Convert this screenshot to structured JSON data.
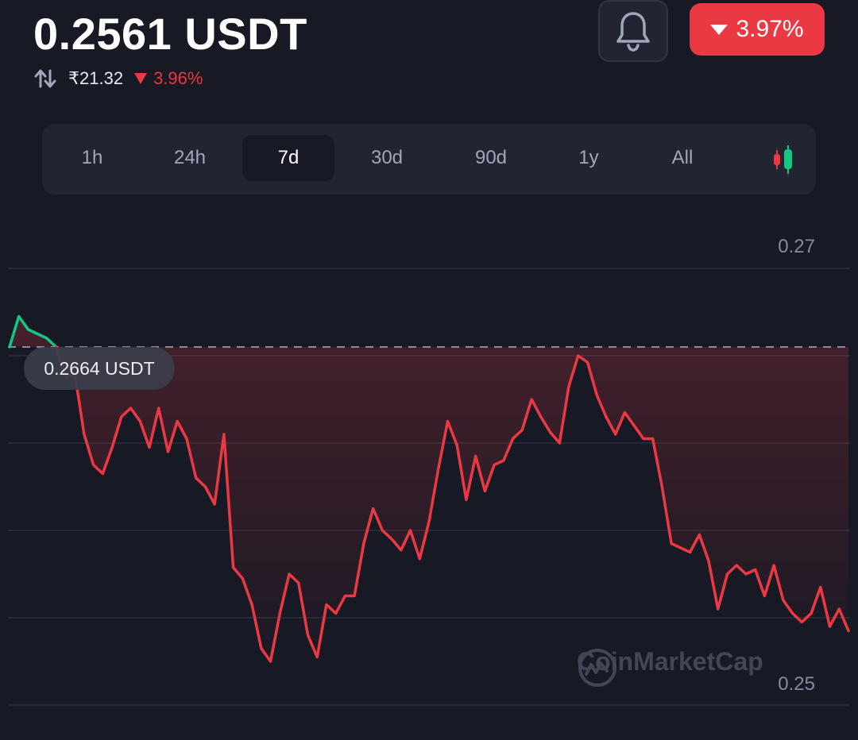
{
  "header": {
    "price": "0.2561 USDT",
    "inr_price": "₹21.32",
    "inr_change": "3.96%",
    "change_badge": "3.97%"
  },
  "icons": {
    "swap": "swap-vertical-icon",
    "bell": "bell-icon",
    "candles": "candlestick-icon",
    "logo": "coinmarketcap-logo-icon"
  },
  "colors": {
    "background": "#171924",
    "panel": "#222531",
    "down": "#ea3943",
    "up": "#16c784",
    "muted_text": "#a1a7bb"
  },
  "tabs": [
    {
      "label": "1h",
      "active": false
    },
    {
      "label": "24h",
      "active": false
    },
    {
      "label": "7d",
      "active": true
    },
    {
      "label": "30d",
      "active": false
    },
    {
      "label": "90d",
      "active": false
    },
    {
      "label": "1y",
      "active": false
    },
    {
      "label": "All",
      "active": false
    }
  ],
  "chart": {
    "open_price_label": "0.2664 USDT",
    "y_ticks": [
      "0.27",
      "0.25"
    ],
    "watermark": "CoinMarketCap"
  },
  "chart_data": {
    "type": "area",
    "x_label": "",
    "y_label": "",
    "reference_price": 0.2664,
    "ylim": [
      0.25,
      0.27
    ],
    "y_ticks": [
      0.27,
      0.25
    ],
    "y_ticks_position": "right",
    "grid": true,
    "series": [
      {
        "color_above_reference": "#16c784",
        "color_below_reference": "#ea3943",
        "values": [
          0.2664,
          0.2678,
          0.2672,
          0.267,
          0.2668,
          0.2664,
          0.265,
          0.2652,
          0.2624,
          0.261,
          0.2606,
          0.2618,
          0.2632,
          0.2636,
          0.263,
          0.2618,
          0.2636,
          0.2616,
          0.263,
          0.2622,
          0.2604,
          0.26,
          0.2592,
          0.2624,
          0.2563,
          0.2558,
          0.2546,
          0.2526,
          0.252,
          0.2542,
          0.256,
          0.2556,
          0.2532,
          0.2522,
          0.2546,
          0.2542,
          0.255,
          0.255,
          0.2574,
          0.259,
          0.258,
          0.2576,
          0.2571,
          0.258,
          0.2567,
          0.2584,
          0.2608,
          0.263,
          0.2619,
          0.2594,
          0.2614,
          0.2598,
          0.261,
          0.2612,
          0.2622,
          0.2626,
          0.264,
          0.2632,
          0.2625,
          0.262,
          0.2646,
          0.266,
          0.2657,
          0.2642,
          0.2632,
          0.2624,
          0.2634,
          0.2628,
          0.2622,
          0.2622,
          0.26,
          0.2574,
          0.2572,
          0.257,
          0.2578,
          0.2566,
          0.2544,
          0.256,
          0.2564,
          0.256,
          0.2562,
          0.255,
          0.2564,
          0.2548,
          0.2542,
          0.2538,
          0.2542,
          0.2554,
          0.2536,
          0.2544,
          0.2534
        ]
      }
    ]
  }
}
